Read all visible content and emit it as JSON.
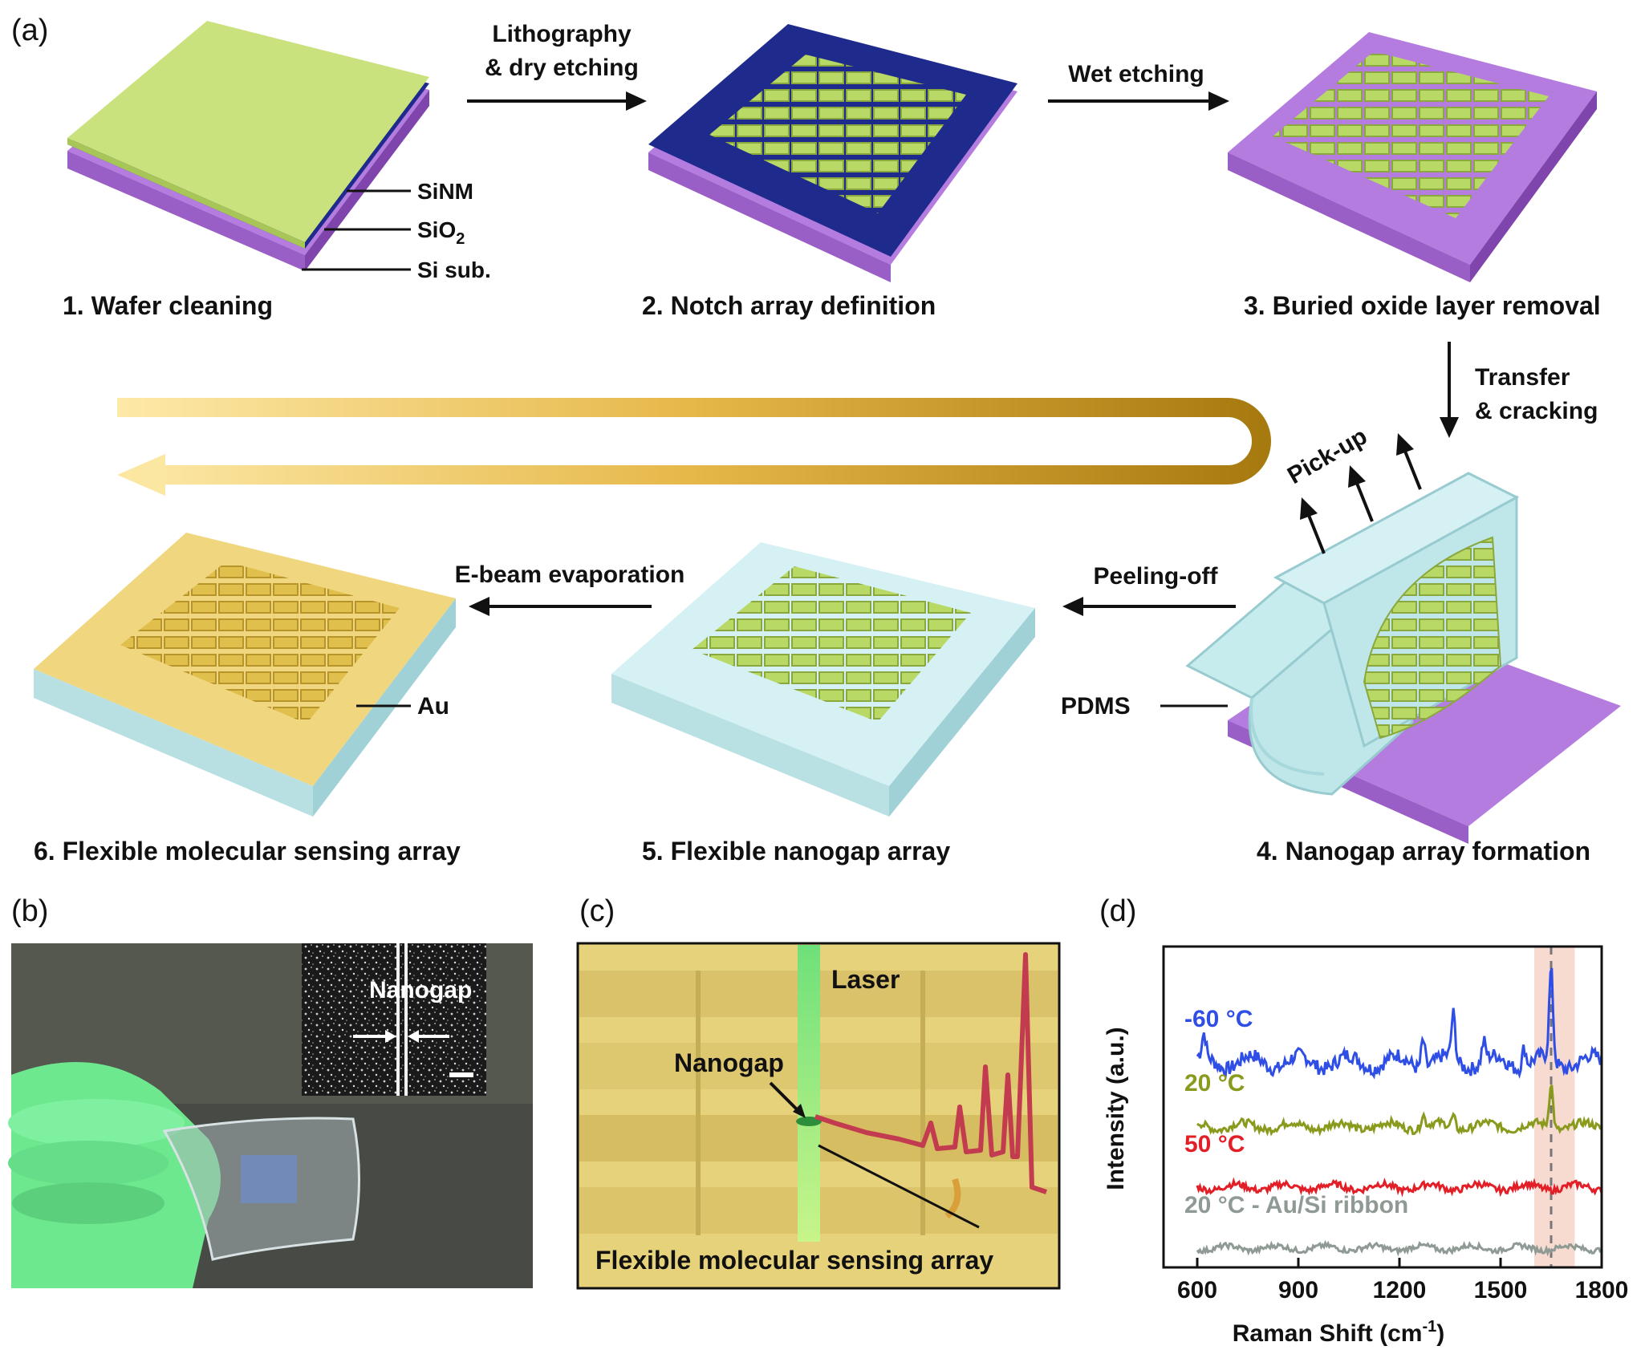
{
  "panels": {
    "a": "(a)",
    "b": "(b)",
    "c": "(c)",
    "d": "(d)"
  },
  "steps": {
    "s1": "1. Wafer cleaning",
    "s2": "2. Notch array definition",
    "s3": "3. Buried oxide layer removal",
    "s4": "4. Nanogap array formation",
    "s5": "5. Flexible nanogap array",
    "s6": "6. Flexible molecular sensing array"
  },
  "arrows": {
    "litho_1": "Lithography",
    "litho_2": "& dry etching",
    "wet": "Wet etching",
    "transfer_1": "Transfer",
    "transfer_2": "& cracking",
    "pickup": "Pick-up",
    "peel": "Peeling-off",
    "ebeam": "E-beam evaporation"
  },
  "layers": {
    "sinm": "SiNM",
    "sio2": "SiO",
    "sio2_sub": "2",
    "si": "Si sub.",
    "pdms": "PDMS",
    "au": "Au"
  },
  "panel_b": {
    "nanogap": "Nanogap"
  },
  "panel_c": {
    "laser": "Laser",
    "nanogap": "Nanogap",
    "array": "Flexible molecular sensing array"
  },
  "colors": {
    "silicon": "#c9e27d",
    "oxide": "#1e2a8c",
    "substrate": "#b57ce0",
    "pdms": "#c7ecee",
    "gold": "#e9cf6e",
    "arrow_gold": "#b88a14"
  },
  "chart_data": {
    "type": "line",
    "xlabel": "Raman Shift (cm",
    "xlabel_sup": "-1",
    "xlabel_end": ")",
    "ylabel": "Intensity (a.u.)",
    "xlim": [
      500,
      1800
    ],
    "xticks": [
      "600",
      "900",
      "1200",
      "1500",
      "1800"
    ],
    "xtick_values": [
      600,
      900,
      1200,
      1500,
      1800
    ],
    "highlight_band": [
      1600,
      1720
    ],
    "dashed_line": 1650,
    "series": [
      {
        "name": "-60 °C",
        "color": "#2f4ee6",
        "offset": 3.0,
        "peaks": [
          [
            620,
            0.35
          ],
          [
            1270,
            0.45
          ],
          [
            1360,
            0.7
          ],
          [
            1450,
            0.3
          ],
          [
            1570,
            0.3
          ],
          [
            1650,
            1.4
          ]
        ],
        "noise": 0.22
      },
      {
        "name": "20 °C",
        "color": "#8a9a1c",
        "offset": 2.0,
        "peaks": [
          [
            1270,
            0.2
          ],
          [
            1360,
            0.18
          ],
          [
            1650,
            0.7
          ]
        ],
        "noise": 0.12
      },
      {
        "name": "50 °C",
        "color": "#e21f26",
        "offset": 1.05,
        "peaks": [],
        "noise": 0.1
      },
      {
        "name": "20 °C - Au/Si ribbon",
        "color": "#8f9a94",
        "offset": 0.1,
        "peaks": [],
        "noise": 0.08
      }
    ]
  }
}
